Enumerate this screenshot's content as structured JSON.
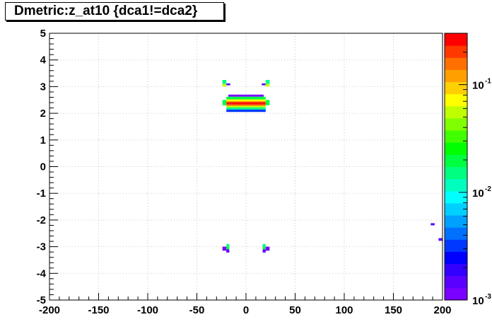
{
  "title": "Dmetric:z_at10 {dca1!=dca2}",
  "chart_data": {
    "type": "heatmap",
    "title": "Dmetric:z_at10 {dca1!=dca2}",
    "xlabel": "",
    "ylabel": "",
    "xlim": [
      -200,
      200
    ],
    "ylim": [
      -5,
      5
    ],
    "x_ticks": [
      "-200",
      "-150",
      "-100",
      "-50",
      "0",
      "50",
      "100",
      "150",
      "200"
    ],
    "y_ticks": [
      "-5",
      "-4",
      "-3",
      "-2",
      "-1",
      "0",
      "1",
      "2",
      "3",
      "4",
      "5"
    ],
    "grid": true,
    "z_scale": "log",
    "zlim": [
      0.001,
      0.3
    ],
    "colorbar_ticks": [
      {
        "label": "10",
        "exp": "-3",
        "value": 0.001
      },
      {
        "label": "10",
        "exp": "-2",
        "value": 0.01
      },
      {
        "label": "10",
        "exp": "-1",
        "value": 0.1
      }
    ],
    "cells": [
      {
        "x0": -18,
        "x1": 18,
        "y0": 2.62,
        "y1": 2.7,
        "z": 0.0012
      },
      {
        "x0": -20,
        "x1": 20,
        "y0": 2.52,
        "y1": 2.62,
        "z": 0.02
      },
      {
        "x0": -20,
        "x1": 20,
        "y0": 2.44,
        "y1": 2.52,
        "z": 0.08
      },
      {
        "x0": -20,
        "x1": 20,
        "y0": 2.39,
        "y1": 2.44,
        "z": 0.2
      },
      {
        "x0": -20,
        "x1": 20,
        "y0": 2.33,
        "y1": 2.39,
        "z": 0.3
      },
      {
        "x0": -20,
        "x1": 20,
        "y0": 2.28,
        "y1": 2.33,
        "z": 0.15
      },
      {
        "x0": -20,
        "x1": 20,
        "y0": 2.22,
        "y1": 2.28,
        "z": 0.06
      },
      {
        "x0": -20,
        "x1": 20,
        "y0": 2.14,
        "y1": 2.22,
        "z": 0.015
      },
      {
        "x0": -20,
        "x1": 20,
        "y0": 2.05,
        "y1": 2.14,
        "z": 0.003
      },
      {
        "x0": -24,
        "x1": -20,
        "y0": 2.3,
        "y1": 2.5,
        "z": 0.02
      },
      {
        "x0": 20,
        "x1": 24,
        "y0": 2.3,
        "y1": 2.5,
        "z": 0.02
      },
      {
        "x0": -24,
        "x1": -20,
        "y0": 3.1,
        "y1": 3.25,
        "z": 0.015
      },
      {
        "x0": -24,
        "x1": -20,
        "y0": 3.0,
        "y1": 3.1,
        "z": 0.05
      },
      {
        "x0": -20,
        "x1": -16,
        "y0": 3.05,
        "y1": 3.12,
        "z": 0.0015
      },
      {
        "x0": 16,
        "x1": 20,
        "y0": 3.05,
        "y1": 3.12,
        "z": 0.0015
      },
      {
        "x0": 20,
        "x1": 24,
        "y0": 3.1,
        "y1": 3.25,
        "z": 0.015
      },
      {
        "x0": 20,
        "x1": 24,
        "y0": 3.0,
        "y1": 3.1,
        "z": 0.05
      },
      {
        "x0": -20,
        "x1": -17,
        "y0": -3.0,
        "y1": -2.9,
        "z": 0.015
      },
      {
        "x0": -20,
        "x1": -17,
        "y0": -3.1,
        "y1": -3.0,
        "z": 0.02
      },
      {
        "x0": -24,
        "x1": -20,
        "y0": -3.15,
        "y1": -3.0,
        "z": 0.0012
      },
      {
        "x0": -20,
        "x1": -17,
        "y0": -3.22,
        "y1": -3.1,
        "z": 0.0015
      },
      {
        "x0": 17,
        "x1": 20,
        "y0": -3.0,
        "y1": -2.9,
        "z": 0.015
      },
      {
        "x0": 17,
        "x1": 20,
        "y0": -3.1,
        "y1": -3.0,
        "z": 0.02
      },
      {
        "x0": 20,
        "x1": 24,
        "y0": -3.15,
        "y1": -3.0,
        "z": 0.0012
      },
      {
        "x0": 17,
        "x1": 20,
        "y0": -3.22,
        "y1": -3.1,
        "z": 0.0015
      },
      {
        "x0": 188,
        "x1": 192,
        "y0": -2.2,
        "y1": -2.12,
        "z": 0.0013
      },
      {
        "x0": 196,
        "x1": 200,
        "y0": -2.78,
        "y1": -2.68,
        "z": 0.0013
      }
    ]
  }
}
